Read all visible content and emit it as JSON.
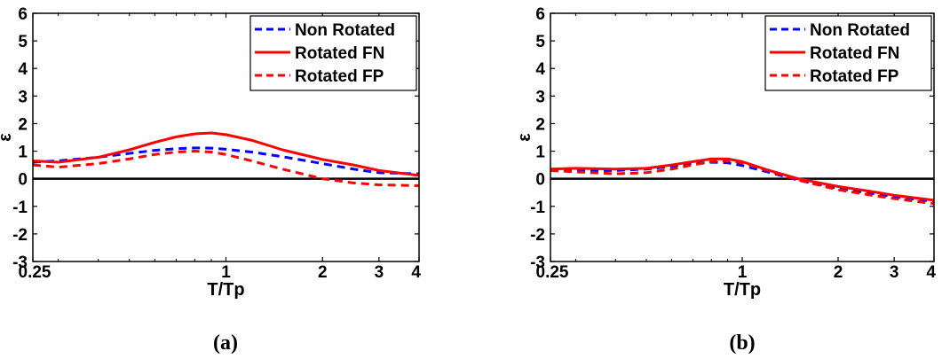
{
  "chart_data": [
    {
      "type": "line",
      "caption": "(a)",
      "xlabel": "T/Tp",
      "ylabel": "ε",
      "xscale": "log",
      "xlim": [
        0.25,
        4
      ],
      "ylim": [
        -3,
        6
      ],
      "xticks": [
        0.25,
        1,
        2,
        3,
        4
      ],
      "xtick_labels": [
        "0.25",
        "1",
        "2",
        "3",
        "4"
      ],
      "yticks": [
        -3,
        -2,
        -1,
        0,
        1,
        2,
        3,
        4,
        5,
        6
      ],
      "ytick_labels": [
        "-3",
        "-2",
        "-1",
        "0",
        "1",
        "2",
        "3",
        "4",
        "5",
        "6"
      ],
      "zero_line": true,
      "grid": false,
      "legend": "top-right",
      "series": [
        {
          "name": "Non Rotated",
          "color": "#0000ff",
          "dash": "dashed",
          "x": [
            0.25,
            0.3,
            0.4,
            0.5,
            0.6,
            0.7,
            0.8,
            0.9,
            1.0,
            1.2,
            1.5,
            2.0,
            2.5,
            3.0,
            4.0
          ],
          "y": [
            0.6,
            0.65,
            0.78,
            0.92,
            1.03,
            1.09,
            1.12,
            1.11,
            1.07,
            0.97,
            0.8,
            0.55,
            0.35,
            0.22,
            0.18
          ]
        },
        {
          "name": "Rotated FN",
          "color": "#ff0000",
          "dash": "solid",
          "x": [
            0.25,
            0.3,
            0.4,
            0.5,
            0.6,
            0.7,
            0.8,
            0.9,
            1.0,
            1.2,
            1.5,
            2.0,
            2.5,
            3.0,
            4.0
          ],
          "y": [
            0.65,
            0.6,
            0.78,
            1.05,
            1.32,
            1.52,
            1.63,
            1.66,
            1.6,
            1.4,
            1.05,
            0.7,
            0.5,
            0.3,
            0.12
          ]
        },
        {
          "name": "Rotated FP",
          "color": "#ff0000",
          "dash": "dashed",
          "x": [
            0.25,
            0.3,
            0.4,
            0.5,
            0.6,
            0.7,
            0.8,
            0.9,
            1.0,
            1.2,
            1.5,
            2.0,
            2.5,
            3.0,
            4.0
          ],
          "y": [
            0.5,
            0.42,
            0.55,
            0.72,
            0.88,
            0.97,
            1.0,
            0.97,
            0.88,
            0.65,
            0.35,
            0.0,
            -0.15,
            -0.22,
            -0.25
          ]
        }
      ]
    },
    {
      "type": "line",
      "caption": "(b)",
      "xlabel": "T/Tp",
      "ylabel": "ε",
      "xscale": "log",
      "xlim": [
        0.25,
        4
      ],
      "ylim": [
        -3,
        6
      ],
      "xticks": [
        0.25,
        1,
        2,
        3,
        4
      ],
      "xtick_labels": [
        "0.25",
        "1",
        "2",
        "3",
        "4"
      ],
      "yticks": [
        -3,
        -2,
        -1,
        0,
        1,
        2,
        3,
        4,
        5,
        6
      ],
      "ytick_labels": [
        "-3",
        "-2",
        "-1",
        "0",
        "1",
        "2",
        "3",
        "4",
        "5",
        "6"
      ],
      "zero_line": true,
      "grid": false,
      "legend": "top-right",
      "series": [
        {
          "name": "Non Rotated",
          "color": "#0000ff",
          "dash": "dashed",
          "x": [
            0.25,
            0.3,
            0.4,
            0.5,
            0.6,
            0.7,
            0.8,
            0.9,
            1.0,
            1.2,
            1.5,
            2.0,
            2.5,
            3.0,
            4.0
          ],
          "y": [
            0.32,
            0.3,
            0.3,
            0.35,
            0.45,
            0.55,
            0.6,
            0.58,
            0.48,
            0.25,
            -0.05,
            -0.35,
            -0.52,
            -0.65,
            -0.82
          ]
        },
        {
          "name": "Rotated FN",
          "color": "#ff0000",
          "dash": "solid",
          "x": [
            0.25,
            0.3,
            0.4,
            0.5,
            0.6,
            0.7,
            0.8,
            0.9,
            1.0,
            1.2,
            1.5,
            2.0,
            2.5,
            3.0,
            4.0
          ],
          "y": [
            0.35,
            0.38,
            0.35,
            0.38,
            0.5,
            0.62,
            0.72,
            0.72,
            0.62,
            0.32,
            0.0,
            -0.28,
            -0.45,
            -0.6,
            -0.78
          ]
        },
        {
          "name": "Rotated FP",
          "color": "#ff0000",
          "dash": "dashed",
          "x": [
            0.25,
            0.3,
            0.4,
            0.5,
            0.6,
            0.7,
            0.8,
            0.9,
            1.0,
            1.2,
            1.5,
            2.0,
            2.5,
            3.0,
            4.0
          ],
          "y": [
            0.3,
            0.25,
            0.18,
            0.22,
            0.35,
            0.5,
            0.62,
            0.66,
            0.58,
            0.3,
            -0.05,
            -0.4,
            -0.58,
            -0.72,
            -0.9
          ]
        }
      ]
    }
  ]
}
